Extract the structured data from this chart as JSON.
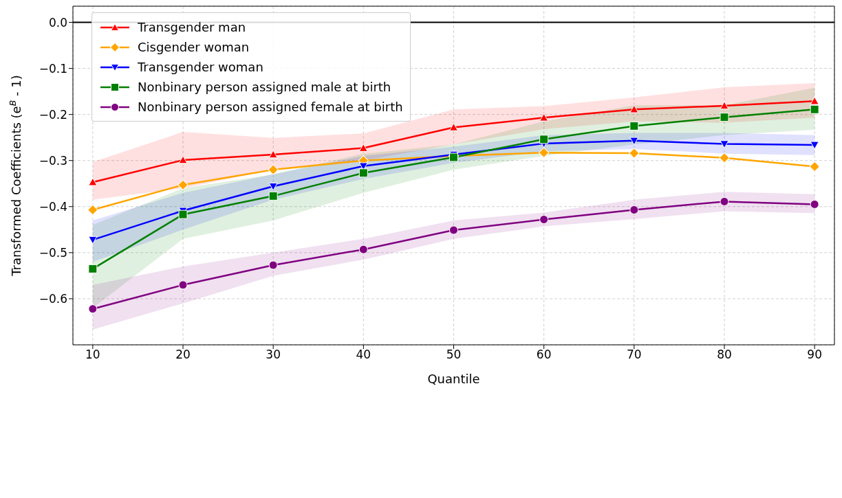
{
  "chart_data": {
    "type": "line",
    "xlabel": "Quantile",
    "ylabel": "Transformed Coefficients (e$^{B}$ - 1)",
    "x": [
      10,
      20,
      30,
      40,
      50,
      60,
      70,
      80,
      90
    ],
    "xlim": [
      7.8,
      92.2
    ],
    "xticks": [
      10,
      20,
      30,
      40,
      50,
      60,
      70,
      80,
      90
    ],
    "ylim": [
      -0.7,
      0.035
    ],
    "yticks": [
      {
        "value": -0.6,
        "label": "−0.6"
      },
      {
        "value": -0.5,
        "label": "−0.5"
      },
      {
        "value": -0.4,
        "label": "−0.4"
      },
      {
        "value": -0.3,
        "label": "−0.3"
      },
      {
        "value": -0.2,
        "label": "−0.2"
      },
      {
        "value": -0.1,
        "label": "−0.1"
      },
      {
        "value": 0,
        "label": "0.0"
      }
    ],
    "grid": true,
    "legend": "top left",
    "line_style": "solid",
    "ref_lines": [
      {
        "axis": "y",
        "value": 0,
        "color": "#000000",
        "line_style": "solid"
      }
    ],
    "series": [
      {
        "name": "Transgender man",
        "color": "#ff0000",
        "marker": "triangle",
        "values": [
          -0.347,
          -0.299,
          -0.287,
          -0.273,
          -0.228,
          -0.207,
          -0.189,
          -0.181,
          -0.171
        ],
        "lower": [
          -0.385,
          -0.36,
          -0.32,
          -0.3,
          -0.265,
          -0.232,
          -0.215,
          -0.218,
          -0.207
        ],
        "upper": [
          -0.303,
          -0.238,
          -0.251,
          -0.241,
          -0.189,
          -0.182,
          -0.163,
          -0.141,
          -0.132
        ]
      },
      {
        "name": "Cisgender woman",
        "color": "#ffa500",
        "marker": "diamond",
        "values": [
          -0.407,
          -0.353,
          -0.32,
          -0.3,
          -0.29,
          -0.283,
          -0.284,
          -0.294,
          -0.313
        ]
      },
      {
        "name": "Transgender woman",
        "color": "#0000ff",
        "marker": "triangle-down",
        "values": [
          -0.472,
          -0.409,
          -0.356,
          -0.312,
          -0.287,
          -0.263,
          -0.257,
          -0.264,
          -0.266
        ],
        "lower": [
          -0.52,
          -0.45,
          -0.385,
          -0.34,
          -0.305,
          -0.28,
          -0.275,
          -0.285,
          -0.288
        ],
        "upper": [
          -0.43,
          -0.37,
          -0.33,
          -0.29,
          -0.27,
          -0.245,
          -0.24,
          -0.24,
          -0.245
        ]
      },
      {
        "name": "Nonbinary person assigned male at birth",
        "color": "#008000",
        "marker": "square",
        "values": [
          -0.535,
          -0.417,
          -0.377,
          -0.327,
          -0.293,
          -0.254,
          -0.225,
          -0.206,
          -0.189
        ],
        "lower": [
          -0.62,
          -0.47,
          -0.43,
          -0.37,
          -0.32,
          -0.29,
          -0.265,
          -0.245,
          -0.233
        ],
        "upper": [
          -0.44,
          -0.36,
          -0.33,
          -0.285,
          -0.265,
          -0.215,
          -0.18,
          -0.18,
          -0.142
        ]
      },
      {
        "name": "Nonbinary person assigned female at birth",
        "color": "#800080",
        "marker": "circle",
        "values": [
          -0.622,
          -0.57,
          -0.527,
          -0.493,
          -0.451,
          -0.428,
          -0.407,
          -0.389,
          -0.395
        ],
        "lower": [
          -0.667,
          -0.61,
          -0.55,
          -0.515,
          -0.47,
          -0.443,
          -0.427,
          -0.41,
          -0.414
        ],
        "upper": [
          -0.57,
          -0.53,
          -0.5,
          -0.47,
          -0.43,
          -0.413,
          -0.385,
          -0.368,
          -0.373
        ]
      }
    ]
  }
}
